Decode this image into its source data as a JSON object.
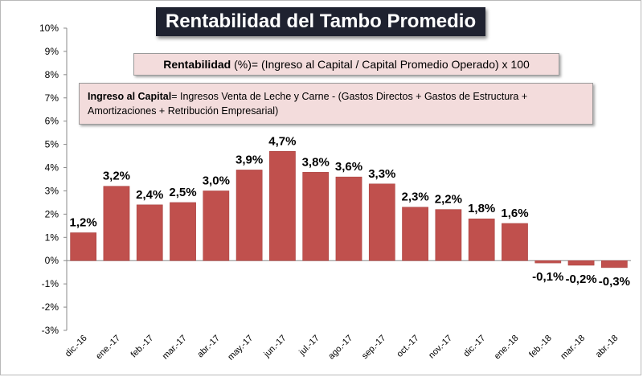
{
  "chart_data": {
    "type": "bar",
    "title": "Rentabilidad del Tambo Promedio",
    "categories": [
      "dic.-16",
      "ene.-17",
      "feb.-17",
      "mar.-17",
      "abr.-17",
      "may.-17",
      "jun.-17",
      "jul.-17",
      "ago.-17",
      "sep.-17",
      "oct.-17",
      "nov.-17",
      "dic.-17",
      "ene.-18",
      "feb.-18",
      "mar.-18",
      "abr.-18"
    ],
    "values": [
      1.2,
      3.2,
      2.4,
      2.5,
      3.0,
      3.9,
      4.7,
      3.8,
      3.6,
      3.3,
      2.3,
      2.2,
      1.8,
      1.6,
      -0.1,
      -0.2,
      -0.3
    ],
    "data_labels": [
      "1,2%",
      "3,2%",
      "2,4%",
      "2,5%",
      "3,0%",
      "3,9%",
      "4,7%",
      "3,8%",
      "3,6%",
      "3,3%",
      "2,3%",
      "2,2%",
      "1,8%",
      "1,6%",
      "-0,1%",
      "-0,2%",
      "-0,3%"
    ],
    "ylim": [
      -3,
      10
    ],
    "yticks": [
      10,
      9,
      8,
      7,
      6,
      5,
      4,
      3,
      2,
      1,
      0,
      -1,
      -2,
      -3
    ],
    "ytick_labels": [
      "10%",
      "9%",
      "8%",
      "7%",
      "6%",
      "5%",
      "4%",
      "3%",
      "2%",
      "1%",
      "0%",
      "-1%",
      "-2%",
      "-3%"
    ],
    "xlabel": "",
    "ylabel": "",
    "grid": false,
    "bar_color": "#c0504d",
    "annotations": {
      "rentabilidad_label": "Rentabilidad",
      "rentabilidad_formula": "(%)= (Ingreso al Capital / Capital Promedio Operado) x 100",
      "ingreso_label": "Ingreso al Capital",
      "ingreso_formula": "= Ingresos Venta de Leche y Carne  -  (Gastos Directos  +  Gastos de Estructura  +  Amortizaciones  +  Retribución Empresarial)"
    }
  }
}
